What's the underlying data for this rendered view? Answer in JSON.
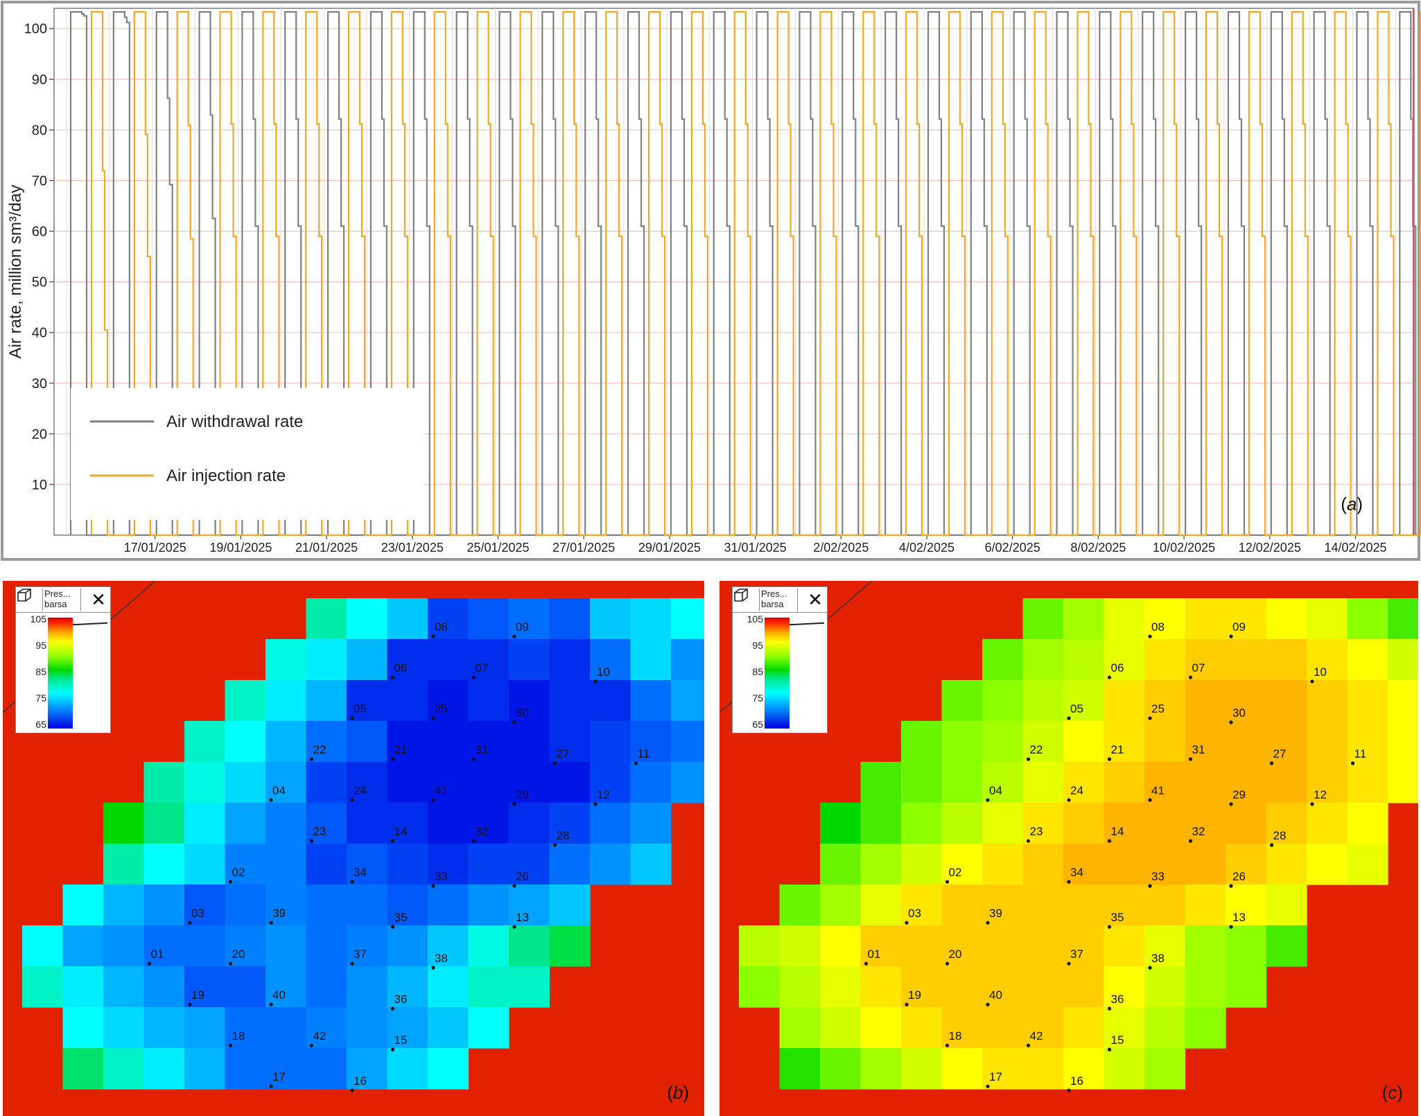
{
  "chart_data": [
    {
      "type": "line",
      "panel": "(a)",
      "panel_label_letter": "a",
      "ylabel": "Air rate, million sm³/day",
      "ylim": [
        0,
        104
      ],
      "y_ticks": [
        10,
        20,
        30,
        40,
        50,
        60,
        70,
        80,
        90,
        100
      ],
      "x_tick_labels": [
        "17/01/2025",
        "19/01/2025",
        "21/01/2025",
        "23/01/2025",
        "25/01/2025",
        "27/01/2025",
        "29/01/2025",
        "31/01/2025",
        "2/02/2025",
        "4/02/2025",
        "6/02/2025",
        "8/02/2025",
        "10/02/2025",
        "12/02/2025",
        "14/02/2025"
      ],
      "grid": true,
      "legend_placement": "bottom-left",
      "series": [
        {
          "name": "Air withdrawal rate",
          "color": "#808080",
          "cycle_days": 1,
          "peak": 103.3,
          "cycle_minimums": [
            102.5,
            101.2,
            69.2,
            62.5,
            61.0,
            61.0,
            61.0,
            61.0,
            61.0,
            61.0,
            61.0,
            61.0,
            61.0,
            61.0,
            61.0,
            61.0,
            61.0,
            61.0,
            61.0,
            61.0,
            61.0,
            61.0,
            61.0,
            61.0,
            61.0,
            61.0,
            61.0,
            61.0,
            61.0,
            61.0,
            61.0,
            61.0,
            61.0
          ]
        },
        {
          "name": "Air injection rate",
          "color": "#f5a623",
          "cycle_days": 1,
          "peak": 103.3,
          "cycle_minimums": [
            40.5,
            55.0,
            58.5,
            59.0,
            59.0,
            59.0,
            59.0,
            59.0,
            59.0,
            59.0,
            59.0,
            59.0,
            59.0,
            59.0,
            59.0,
            59.0,
            59.0,
            59.0,
            59.0,
            59.0,
            59.0,
            59.0,
            59.0,
            59.0,
            59.0,
            59.0,
            59.0,
            59.0,
            59.0,
            59.0,
            59.0,
            59.0,
            59.0
          ]
        }
      ]
    },
    {
      "type": "heatmap",
      "panel": "(b)",
      "panel_label_letter": "b",
      "legend": {
        "title": "Pres...",
        "unit": "barsa",
        "ticks": [
          "105",
          "95",
          "85",
          "75",
          "65"
        ],
        "close_symbol": "✕"
      },
      "value_range": [
        65,
        105
      ],
      "background_value": 104,
      "row_starts": [
        7,
        6,
        5,
        4,
        3,
        2,
        1,
        1,
        0,
        0,
        0,
        1,
        1
      ],
      "values": [
        [
          0,
          0,
          0,
          0,
          0,
          0,
          0,
          81,
          78,
          75,
          68,
          69,
          70,
          69,
          75,
          76,
          78,
          0,
          0
        ],
        [
          0,
          0,
          0,
          0,
          0,
          0,
          79,
          77,
          74,
          67,
          67,
          67,
          68,
          67,
          70,
          76,
          72,
          0,
          0
        ],
        [
          0,
          0,
          0,
          0,
          0,
          80,
          77,
          74,
          67,
          67,
          66,
          67,
          66,
          67,
          67,
          70,
          73,
          75,
          0
        ],
        [
          0,
          0,
          0,
          0,
          80,
          78,
          74,
          70,
          69,
          66,
          66,
          66,
          66,
          67,
          68,
          69,
          70,
          72,
          0
        ],
        [
          0,
          0,
          0,
          81,
          79,
          76,
          73,
          68,
          67,
          66,
          66,
          66,
          66,
          66,
          68,
          70,
          72,
          0,
          0
        ],
        [
          0,
          0,
          86,
          82,
          77,
          73,
          71,
          69,
          67,
          67,
          66,
          66,
          67,
          68,
          70,
          72,
          0,
          0,
          0
        ],
        [
          0,
          0,
          81,
          78,
          76,
          71,
          71,
          68,
          69,
          68,
          67,
          68,
          68,
          70,
          72,
          75,
          0,
          0,
          0
        ],
        [
          0,
          78,
          74,
          72,
          69,
          70,
          71,
          70,
          70,
          69,
          70,
          72,
          73,
          75,
          0,
          0,
          0,
          0,
          0
        ],
        [
          78,
          73,
          72,
          70,
          70,
          71,
          72,
          70,
          71,
          72,
          75,
          79,
          82,
          84,
          0,
          0,
          0,
          0,
          0
        ],
        [
          80,
          77,
          74,
          72,
          69,
          69,
          72,
          70,
          72,
          74,
          77,
          80,
          80,
          0,
          0,
          0,
          0,
          0,
          0
        ],
        [
          0,
          78,
          76,
          74,
          73,
          70,
          70,
          71,
          72,
          73,
          75,
          78,
          0,
          0,
          0,
          0,
          0,
          0,
          0
        ],
        [
          0,
          83,
          80,
          77,
          74,
          70,
          70,
          70,
          73,
          76,
          78,
          0,
          0,
          0,
          0,
          0,
          0,
          0,
          0
        ],
        [
          0,
          0,
          0,
          0,
          0,
          0,
          0,
          0,
          0,
          0,
          0,
          0,
          0,
          0,
          0,
          0,
          0,
          0,
          0
        ]
      ],
      "wells": [
        {
          "id": "08",
          "c": 10.0,
          "r": 0.2
        },
        {
          "id": "09",
          "c": 12.0,
          "r": 0.2
        },
        {
          "id": "06",
          "c": 9.0,
          "r": 1.2
        },
        {
          "id": "07",
          "c": 11.0,
          "r": 1.2
        },
        {
          "id": "10",
          "c": 14.0,
          "r": 1.3
        },
        {
          "id": "05",
          "c": 8.0,
          "r": 2.2
        },
        {
          "id": "25",
          "c": 10.0,
          "r": 2.2
        },
        {
          "id": "30",
          "c": 12.0,
          "r": 2.3
        },
        {
          "id": "22",
          "c": 7.0,
          "r": 3.2
        },
        {
          "id": "21",
          "c": 9.0,
          "r": 3.2
        },
        {
          "id": "31",
          "c": 11.0,
          "r": 3.2
        },
        {
          "id": "27",
          "c": 13.0,
          "r": 3.3
        },
        {
          "id": "11",
          "c": 15.0,
          "r": 3.3
        },
        {
          "id": "04",
          "c": 6.0,
          "r": 4.2
        },
        {
          "id": "24",
          "c": 8.0,
          "r": 4.2
        },
        {
          "id": "41",
          "c": 10.0,
          "r": 4.2
        },
        {
          "id": "29",
          "c": 12.0,
          "r": 4.3
        },
        {
          "id": "12",
          "c": 14.0,
          "r": 4.3
        },
        {
          "id": "23",
          "c": 7.0,
          "r": 5.2
        },
        {
          "id": "14",
          "c": 9.0,
          "r": 5.2
        },
        {
          "id": "32",
          "c": 11.0,
          "r": 5.2
        },
        {
          "id": "28",
          "c": 13.0,
          "r": 5.3
        },
        {
          "id": "02",
          "c": 5.0,
          "r": 6.2
        },
        {
          "id": "34",
          "c": 8.0,
          "r": 6.2
        },
        {
          "id": "33",
          "c": 10.0,
          "r": 6.3
        },
        {
          "id": "26",
          "c": 12.0,
          "r": 6.3
        },
        {
          "id": "03",
          "c": 4.0,
          "r": 7.2
        },
        {
          "id": "39",
          "c": 6.0,
          "r": 7.2
        },
        {
          "id": "35",
          "c": 9.0,
          "r": 7.3
        },
        {
          "id": "13",
          "c": 12.0,
          "r": 7.3
        },
        {
          "id": "01",
          "c": 3.0,
          "r": 8.2
        },
        {
          "id": "20",
          "c": 5.0,
          "r": 8.2
        },
        {
          "id": "37",
          "c": 8.0,
          "r": 8.2
        },
        {
          "id": "38",
          "c": 10.0,
          "r": 8.3
        },
        {
          "id": "19",
          "c": 4.0,
          "r": 9.2
        },
        {
          "id": "40",
          "c": 6.0,
          "r": 9.2
        },
        {
          "id": "36",
          "c": 9.0,
          "r": 9.3
        },
        {
          "id": "18",
          "c": 5.0,
          "r": 10.2
        },
        {
          "id": "42",
          "c": 7.0,
          "r": 10.2
        },
        {
          "id": "15",
          "c": 9.0,
          "r": 10.3
        },
        {
          "id": "17",
          "c": 6.0,
          "r": 11.2
        },
        {
          "id": "16",
          "c": 8.0,
          "r": 11.3
        }
      ]
    },
    {
      "type": "heatmap",
      "panel": "(c)",
      "panel_label_letter": "c",
      "legend": {
        "title": "Pres...",
        "unit": "barsa",
        "ticks": [
          "105",
          "95",
          "85",
          "75",
          "65"
        ],
        "close_symbol": "✕"
      },
      "value_range": [
        65,
        105
      ],
      "background_value": 104,
      "row_starts": [
        7,
        6,
        5,
        4,
        3,
        2,
        1,
        1,
        0,
        0,
        0,
        1,
        1
      ],
      "values": [
        [
          0,
          0,
          0,
          0,
          0,
          0,
          0,
          89,
          91,
          94,
          95,
          96,
          96,
          95,
          94,
          90,
          88,
          0,
          0
        ],
        [
          0,
          0,
          0,
          0,
          0,
          0,
          89,
          91,
          92,
          94,
          96,
          97,
          97,
          97,
          96,
          95,
          93,
          0,
          0
        ],
        [
          0,
          0,
          0,
          0,
          0,
          89,
          90,
          92,
          93,
          96,
          97,
          98,
          98,
          98,
          97,
          96,
          95,
          93,
          0
        ],
        [
          0,
          0,
          0,
          0,
          89,
          90,
          91,
          93,
          95,
          96,
          97,
          98,
          98,
          98,
          97,
          96,
          95,
          94,
          0
        ],
        [
          0,
          0,
          0,
          88,
          89,
          90,
          92,
          94,
          96,
          97,
          98,
          98,
          98,
          98,
          97,
          96,
          95,
          0,
          0
        ],
        [
          0,
          0,
          86,
          88,
          90,
          92,
          94,
          96,
          97,
          98,
          98,
          98,
          98,
          97,
          96,
          95,
          0,
          0,
          0
        ],
        [
          0,
          0,
          89,
          91,
          93,
          95,
          96,
          97,
          98,
          98,
          98,
          98,
          97,
          96,
          95,
          94,
          0,
          0,
          0
        ],
        [
          0,
          89,
          91,
          94,
          96,
          97,
          97,
          97,
          97,
          97,
          97,
          96,
          95,
          94,
          0,
          0,
          0,
          0,
          0
        ],
        [
          92,
          93,
          95,
          97,
          97,
          97,
          97,
          97,
          97,
          96,
          94,
          91,
          90,
          88,
          0,
          0,
          0,
          0,
          0
        ],
        [
          90,
          92,
          94,
          96,
          97,
          97,
          97,
          97,
          97,
          95,
          93,
          91,
          90,
          0,
          0,
          0,
          0,
          0,
          0
        ],
        [
          0,
          91,
          93,
          95,
          96,
          97,
          97,
          97,
          96,
          94,
          92,
          90,
          0,
          0,
          0,
          0,
          0,
          0,
          0
        ],
        [
          0,
          87,
          89,
          91,
          93,
          95,
          96,
          96,
          95,
          93,
          91,
          0,
          0,
          0,
          0,
          0,
          0,
          0,
          0
        ],
        [
          0,
          0,
          0,
          0,
          0,
          0,
          0,
          0,
          0,
          0,
          0,
          0,
          0,
          0,
          0,
          0,
          0,
          0,
          0
        ]
      ],
      "wells": [
        {
          "id": "08",
          "c": 10.0,
          "r": 0.2
        },
        {
          "id": "09",
          "c": 12.0,
          "r": 0.2
        },
        {
          "id": "06",
          "c": 9.0,
          "r": 1.2
        },
        {
          "id": "07",
          "c": 11.0,
          "r": 1.2
        },
        {
          "id": "10",
          "c": 14.0,
          "r": 1.3
        },
        {
          "id": "05",
          "c": 8.0,
          "r": 2.2
        },
        {
          "id": "25",
          "c": 10.0,
          "r": 2.2
        },
        {
          "id": "30",
          "c": 12.0,
          "r": 2.3
        },
        {
          "id": "22",
          "c": 7.0,
          "r": 3.2
        },
        {
          "id": "21",
          "c": 9.0,
          "r": 3.2
        },
        {
          "id": "31",
          "c": 11.0,
          "r": 3.2
        },
        {
          "id": "27",
          "c": 13.0,
          "r": 3.3
        },
        {
          "id": "11",
          "c": 15.0,
          "r": 3.3
        },
        {
          "id": "04",
          "c": 6.0,
          "r": 4.2
        },
        {
          "id": "24",
          "c": 8.0,
          "r": 4.2
        },
        {
          "id": "41",
          "c": 10.0,
          "r": 4.2
        },
        {
          "id": "29",
          "c": 12.0,
          "r": 4.3
        },
        {
          "id": "12",
          "c": 14.0,
          "r": 4.3
        },
        {
          "id": "23",
          "c": 7.0,
          "r": 5.2
        },
        {
          "id": "14",
          "c": 9.0,
          "r": 5.2
        },
        {
          "id": "32",
          "c": 11.0,
          "r": 5.2
        },
        {
          "id": "28",
          "c": 13.0,
          "r": 5.3
        },
        {
          "id": "02",
          "c": 5.0,
          "r": 6.2
        },
        {
          "id": "34",
          "c": 8.0,
          "r": 6.2
        },
        {
          "id": "33",
          "c": 10.0,
          "r": 6.3
        },
        {
          "id": "26",
          "c": 12.0,
          "r": 6.3
        },
        {
          "id": "03",
          "c": 4.0,
          "r": 7.2
        },
        {
          "id": "39",
          "c": 6.0,
          "r": 7.2
        },
        {
          "id": "35",
          "c": 9.0,
          "r": 7.3
        },
        {
          "id": "13",
          "c": 12.0,
          "r": 7.3
        },
        {
          "id": "01",
          "c": 3.0,
          "r": 8.2
        },
        {
          "id": "20",
          "c": 5.0,
          "r": 8.2
        },
        {
          "id": "37",
          "c": 8.0,
          "r": 8.2
        },
        {
          "id": "38",
          "c": 10.0,
          "r": 8.3
        },
        {
          "id": "19",
          "c": 4.0,
          "r": 9.2
        },
        {
          "id": "40",
          "c": 6.0,
          "r": 9.2
        },
        {
          "id": "36",
          "c": 9.0,
          "r": 9.3
        },
        {
          "id": "18",
          "c": 5.0,
          "r": 10.2
        },
        {
          "id": "42",
          "c": 7.0,
          "r": 10.2
        },
        {
          "id": "15",
          "c": 9.0,
          "r": 10.3
        },
        {
          "id": "17",
          "c": 6.0,
          "r": 11.2
        },
        {
          "id": "16",
          "c": 8.0,
          "r": 11.3
        }
      ]
    }
  ]
}
